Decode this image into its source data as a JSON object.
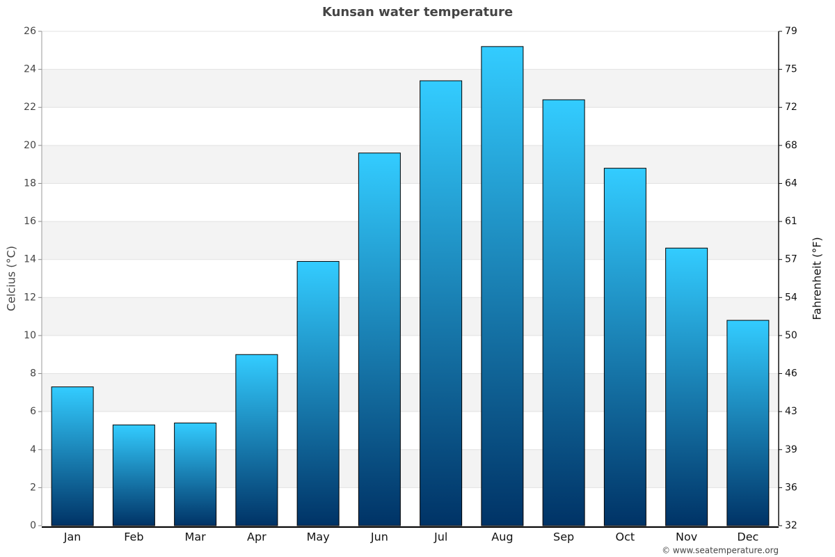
{
  "chart_data": {
    "type": "bar",
    "title": "Kunsan water temperature",
    "y_label": "Celcius (°C)",
    "y2_label": "Fahrenheit (°F)",
    "credit": "© www.seatemperature.org",
    "categories": [
      "Jan",
      "Feb",
      "Mar",
      "Apr",
      "May",
      "Jun",
      "Jul",
      "Aug",
      "Sep",
      "Oct",
      "Nov",
      "Dec"
    ],
    "values": [
      7.3,
      5.3,
      5.4,
      9.0,
      13.9,
      19.6,
      23.4,
      25.2,
      22.4,
      18.8,
      14.6,
      10.8
    ],
    "color": [
      "#33ccff",
      "#003366"
    ],
    "ylim": [
      0,
      26
    ],
    "yticks": [
      0,
      2,
      4,
      6,
      8,
      10,
      12,
      14,
      16,
      18,
      20,
      22,
      24,
      26
    ],
    "y2lim": [
      32,
      78.8
    ],
    "y2ticks": [
      32,
      {
        "value": 35.6,
        "label": "36"
      },
      {
        "value": 39.2,
        "label": "39"
      },
      {
        "value": 42.8,
        "label": "43"
      },
      {
        "value": 46.4,
        "label": "46"
      },
      50,
      {
        "value": 53.6,
        "label": "54"
      },
      {
        "value": 57.2,
        "label": "57"
      },
      {
        "value": 60.8,
        "label": "61"
      },
      {
        "value": 64.4,
        "label": "64"
      },
      68,
      {
        "value": 71.6,
        "label": "72"
      },
      {
        "value": 75.2,
        "label": "75"
      },
      {
        "value": 78.8,
        "label": "79"
      }
    ],
    "grid": true
  }
}
